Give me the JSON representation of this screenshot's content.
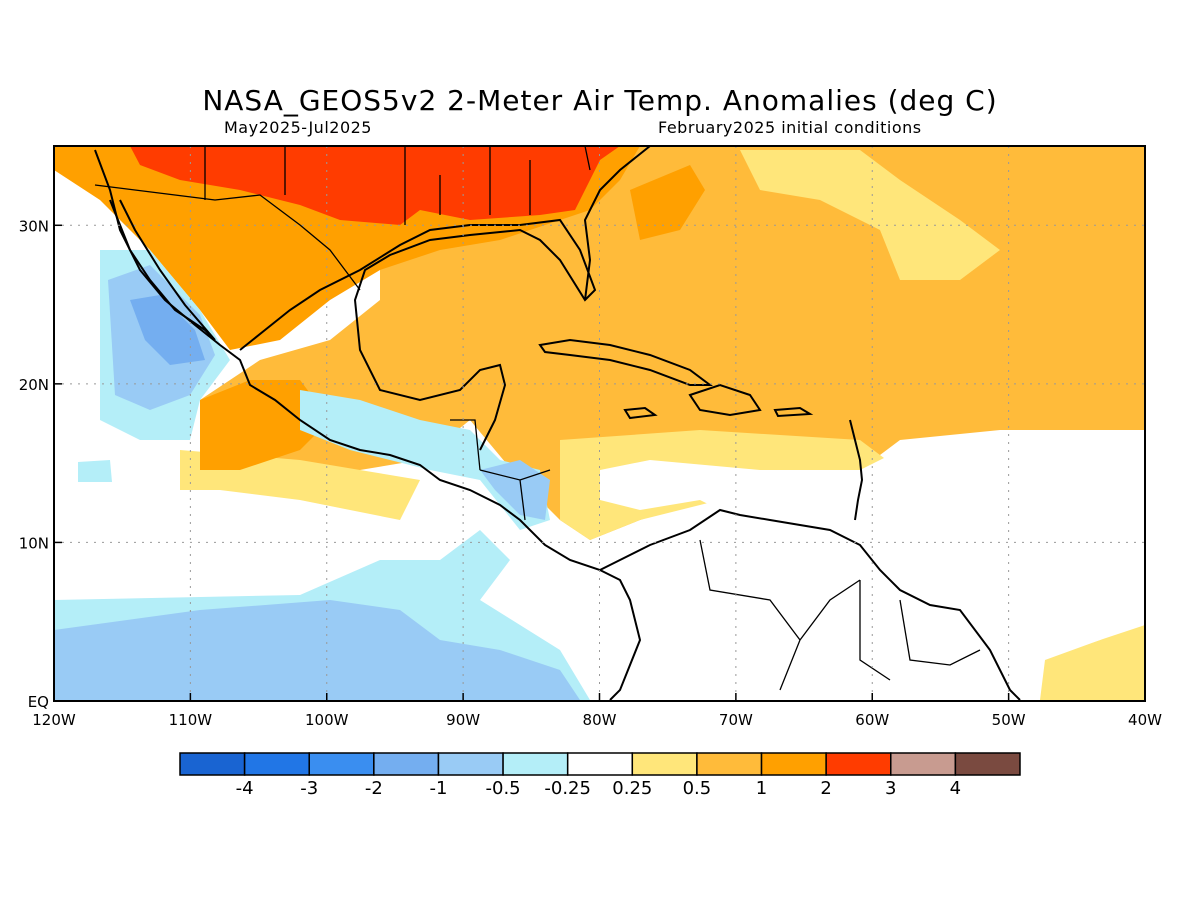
{
  "title": "NASA_GEOS5v2 2-Meter Air Temp. Anomalies (deg C)",
  "subtitle_left": "May2025-Jul2025",
  "subtitle_right": "February2025 initial conditions",
  "map": {
    "lon_range": [
      -120,
      -40
    ],
    "lat_range": [
      0,
      35
    ],
    "lon_ticks": [
      {
        "value": -120,
        "label": "120W"
      },
      {
        "value": -110,
        "label": "110W"
      },
      {
        "value": -100,
        "label": "100W"
      },
      {
        "value": -90,
        "label": "90W"
      },
      {
        "value": -80,
        "label": "80W"
      },
      {
        "value": -70,
        "label": "70W"
      },
      {
        "value": -60,
        "label": "60W"
      },
      {
        "value": -50,
        "label": "50W"
      },
      {
        "value": -40,
        "label": "40W"
      }
    ],
    "lat_ticks": [
      {
        "value": 0,
        "label": "EQ"
      },
      {
        "value": 10,
        "label": "10N"
      },
      {
        "value": 20,
        "label": "20N"
      },
      {
        "value": 30,
        "label": "30N"
      }
    ],
    "grid": true,
    "regions": [
      {
        "category": "0.5 to 1",
        "color": "#ffbb3a",
        "description": "Atlantic / Caribbean / Gulf broad warm anomaly"
      },
      {
        "category": "1 to 2",
        "color": "#ffa000",
        "description": "Mexico and southern US warm anomaly"
      },
      {
        "category": "2 to 3",
        "color": "#ff3c00",
        "description": "Southern US strong warm anomaly"
      },
      {
        "category": "-1 to -0.5",
        "color": "#99cbf5",
        "description": "Eastern Pacific cool anomaly"
      },
      {
        "category": "-2 to -1",
        "color": "#74aef0",
        "description": "Baja California offshore cool anomaly"
      },
      {
        "category": "-0.5 to -0.25",
        "color": "#b4eef8",
        "description": "Equatorial eastern Pacific slight cool"
      }
    ]
  },
  "colorbar": {
    "colors": [
      "#1964d2",
      "#2176e6",
      "#3a8ef0",
      "#74aef0",
      "#99cbf5",
      "#b4eef8",
      "#ffffff",
      "#ffe67a",
      "#ffbb3a",
      "#ffa000",
      "#ff3c00",
      "#c89b90",
      "#7a4a40"
    ],
    "labels": [
      "-4",
      "-3",
      "-2",
      "-1",
      "-0.5",
      "-0.25",
      "0.25",
      "0.5",
      "1",
      "2",
      "3",
      "4"
    ]
  }
}
